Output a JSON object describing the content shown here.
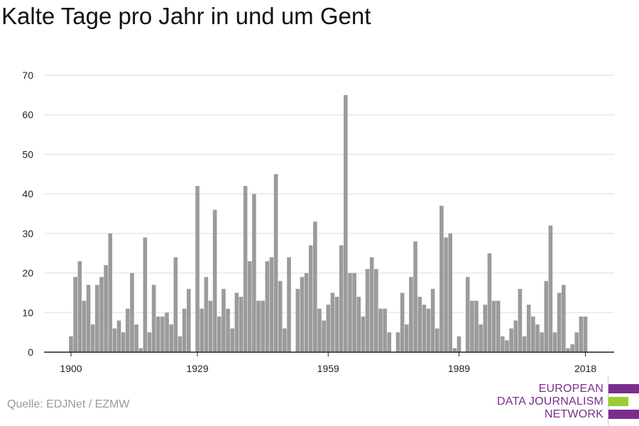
{
  "title": "Kalte Tage pro Jahr in und um Gent",
  "source": "Quelle: EDJNet / EZMW",
  "logo": {
    "lines": [
      "EUROPEAN",
      "DATA JOURNALISM",
      "NETWORK"
    ],
    "colors": {
      "purple": "#7b2d8e",
      "green": "#9acd32"
    }
  },
  "colors": {
    "bar": "#9b9b9b",
    "grid": "#dddddd",
    "axis": "#222222"
  },
  "chart_data": {
    "type": "bar",
    "title": "Kalte Tage pro Jahr in und um Gent",
    "xlabel": "",
    "ylabel": "",
    "ylim": [
      0,
      70
    ],
    "yticks": [
      0,
      10,
      20,
      30,
      40,
      50,
      60,
      70
    ],
    "xticks": [
      1900,
      1929,
      1959,
      1989,
      2018
    ],
    "grid": true,
    "x": [
      1900,
      1901,
      1902,
      1903,
      1904,
      1905,
      1906,
      1907,
      1908,
      1909,
      1910,
      1911,
      1912,
      1913,
      1914,
      1915,
      1916,
      1917,
      1918,
      1919,
      1920,
      1921,
      1922,
      1923,
      1924,
      1925,
      1926,
      1927,
      1928,
      1929,
      1930,
      1931,
      1932,
      1933,
      1934,
      1935,
      1936,
      1937,
      1938,
      1939,
      1940,
      1941,
      1942,
      1943,
      1944,
      1945,
      1946,
      1947,
      1948,
      1949,
      1950,
      1951,
      1952,
      1953,
      1954,
      1955,
      1956,
      1957,
      1958,
      1959,
      1960,
      1961,
      1962,
      1963,
      1964,
      1965,
      1966,
      1967,
      1968,
      1969,
      1970,
      1971,
      1972,
      1973,
      1974,
      1975,
      1976,
      1977,
      1978,
      1979,
      1980,
      1981,
      1982,
      1983,
      1984,
      1985,
      1986,
      1987,
      1988,
      1989,
      1990,
      1991,
      1992,
      1993,
      1994,
      1995,
      1996,
      1997,
      1998,
      1999,
      2000,
      2001,
      2002,
      2003,
      2004,
      2005,
      2006,
      2007,
      2008,
      2009,
      2010,
      2011,
      2012,
      2013,
      2014,
      2015,
      2016,
      2017,
      2018
    ],
    "values": [
      4,
      19,
      23,
      13,
      17,
      7,
      17,
      19,
      22,
      30,
      6,
      8,
      5,
      11,
      20,
      7,
      1,
      29,
      5,
      17,
      9,
      9,
      10,
      7,
      24,
      4,
      11,
      16,
      0,
      42,
      11,
      19,
      13,
      36,
      9,
      16,
      11,
      6,
      15,
      14,
      42,
      23,
      40,
      13,
      13,
      23,
      24,
      45,
      18,
      6,
      24,
      0,
      16,
      19,
      20,
      27,
      33,
      11,
      8,
      12,
      15,
      14,
      27,
      65,
      20,
      20,
      14,
      9,
      21,
      24,
      21,
      11,
      11,
      5,
      0,
      5,
      15,
      7,
      19,
      28,
      14,
      12,
      11,
      16,
      6,
      37,
      29,
      30,
      1,
      4,
      0,
      19,
      13,
      13,
      7,
      12,
      25,
      13,
      13,
      4,
      3,
      6,
      8,
      16,
      4,
      12,
      9,
      7,
      5,
      18,
      32,
      5,
      15,
      17,
      1,
      2,
      5,
      9,
      9
    ]
  }
}
